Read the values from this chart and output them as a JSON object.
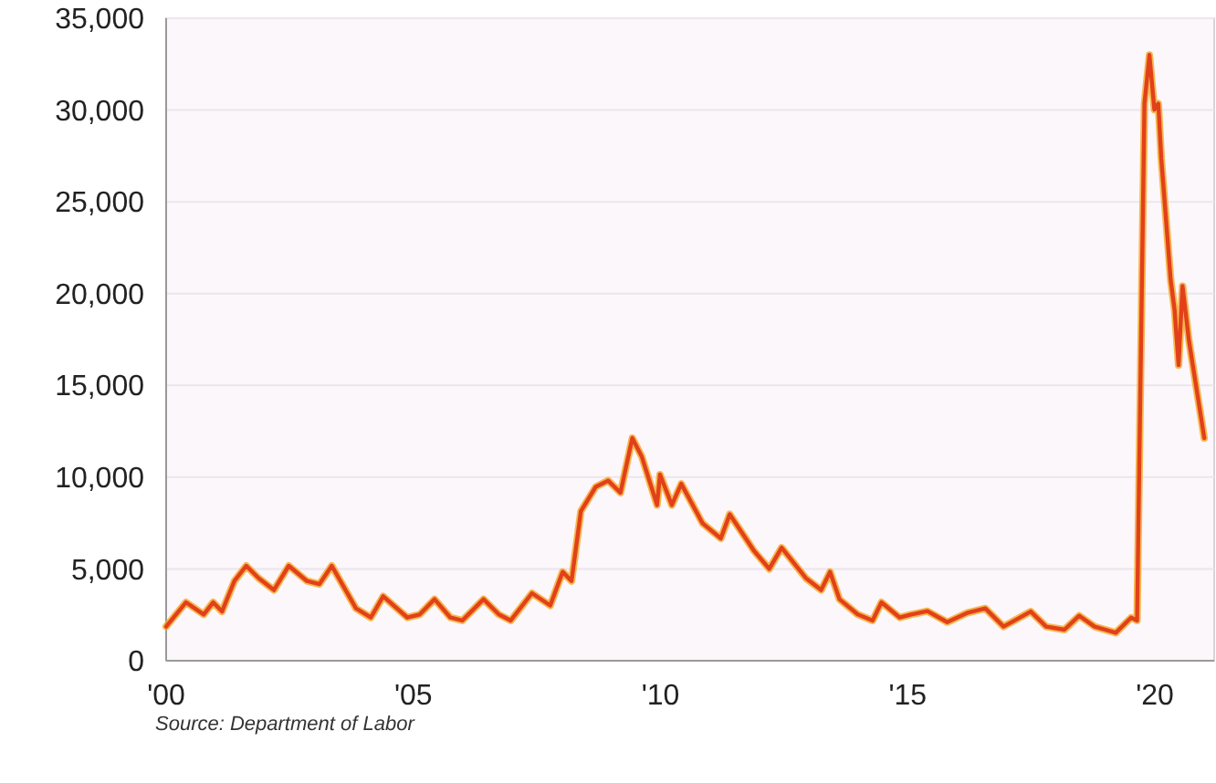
{
  "chart_data": {
    "type": "line",
    "x": [
      2000.0,
      2000.4,
      2000.76,
      2000.95,
      2001.13,
      2001.38,
      2001.62,
      2001.87,
      2002.18,
      2002.48,
      2002.85,
      2003.1,
      2003.35,
      2003.84,
      2004.14,
      2004.39,
      2004.88,
      2005.13,
      2005.43,
      2005.75,
      2005.99,
      2006.42,
      2006.73,
      2006.97,
      2007.4,
      2007.77,
      2008.02,
      2008.2,
      2008.39,
      2008.69,
      2008.94,
      2009.19,
      2009.43,
      2009.62,
      2009.93,
      2009.99,
      2010.23,
      2010.42,
      2010.85,
      2011.22,
      2011.4,
      2011.89,
      2012.2,
      2012.45,
      2012.94,
      2013.25,
      2013.43,
      2013.62,
      2013.99,
      2014.29,
      2014.47,
      2014.84,
      2015.07,
      2015.4,
      2015.8,
      2016.2,
      2016.57,
      2016.94,
      2017.49,
      2017.8,
      2018.17,
      2018.47,
      2018.78,
      2019.21,
      2019.52,
      2019.64,
      2019.79,
      2019.89,
      2019.99,
      2020.07,
      2020.13,
      2020.32,
      2020.4,
      2020.48,
      2020.56,
      2020.69,
      2021.0
    ],
    "series": [
      {
        "color": "#e2401a",
        "values": [
          1860,
          3180,
          2520,
          3180,
          2680,
          4340,
          5170,
          4500,
          3850,
          5170,
          4340,
          4170,
          5170,
          2850,
          2350,
          3510,
          2350,
          2520,
          3350,
          2350,
          2190,
          3350,
          2520,
          2190,
          3680,
          3010,
          4840,
          4340,
          8150,
          9470,
          9810,
          9150,
          12130,
          11130,
          8480,
          10140,
          8480,
          9640,
          7490,
          6660,
          7980,
          5990,
          5000,
          6160,
          4500,
          3850,
          4840,
          3350,
          2520,
          2190,
          3180,
          2350,
          2520,
          2700,
          2100,
          2600,
          2850,
          1860,
          2680,
          1860,
          1690,
          2450,
          1860,
          1520,
          2350,
          2190,
          30350,
          33000,
          30020,
          30350,
          27370,
          20750,
          19090,
          16100,
          20410,
          17430,
          12130
        ]
      }
    ],
    "xlim": [
      2000,
      2021.2
    ],
    "xticks": [
      {
        "value": 2000,
        "label": "'00"
      },
      {
        "value": 2005,
        "label": "'05"
      },
      {
        "value": 2010,
        "label": "'10"
      },
      {
        "value": 2015,
        "label": "'15"
      },
      {
        "value": 2020,
        "label": "'20"
      }
    ],
    "ylim": [
      0,
      35000
    ],
    "yticks": [
      {
        "value": 0,
        "label": "0"
      },
      {
        "value": 5000,
        "label": "5,000"
      },
      {
        "value": 10000,
        "label": "10,000"
      },
      {
        "value": 15000,
        "label": "15,000"
      },
      {
        "value": 20000,
        "label": "20,000"
      },
      {
        "value": 25000,
        "label": "25,000"
      },
      {
        "value": 30000,
        "label": "30,000"
      },
      {
        "value": 35000,
        "label": "35,000"
      }
    ],
    "grid": "y",
    "annotations": [
      "Source: Department of Labor"
    ]
  }
}
